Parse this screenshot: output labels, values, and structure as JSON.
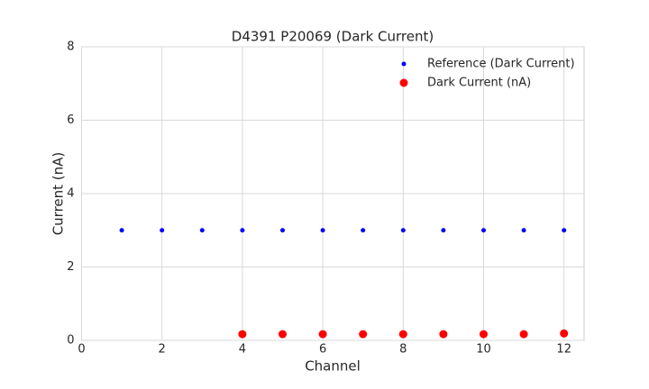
{
  "chart_data": {
    "type": "scatter",
    "title": "D4391 P20069 (Dark Current)",
    "x_label": "Channel",
    "y_label": "Current (nA)",
    "series": [
      {
        "name": "Reference (Dark Current)",
        "color": "#0000ff",
        "x": [
          1,
          2,
          3,
          4,
          5,
          6,
          7,
          8,
          9,
          10,
          11,
          12
        ],
        "values": [
          3,
          3,
          3,
          3,
          3,
          3,
          3,
          3,
          3,
          3,
          3,
          3
        ]
      },
      {
        "name": "Dark Current (nA)",
        "color": "#ff0000",
        "x": [
          4,
          5,
          6,
          7,
          8,
          9,
          10,
          11,
          12
        ],
        "values": [
          0.17,
          0.17,
          0.17,
          0.17,
          0.17,
          0.17,
          0.17,
          0.17,
          0.19
        ]
      }
    ],
    "xlim": [
      0,
      12.5
    ],
    "xticks": [
      0,
      2,
      4,
      6,
      8,
      10,
      12
    ],
    "ylim": [
      0,
      8
    ],
    "yticks": [
      0,
      2,
      4,
      6,
      8
    ],
    "grid": true,
    "legend": "upper right"
  }
}
